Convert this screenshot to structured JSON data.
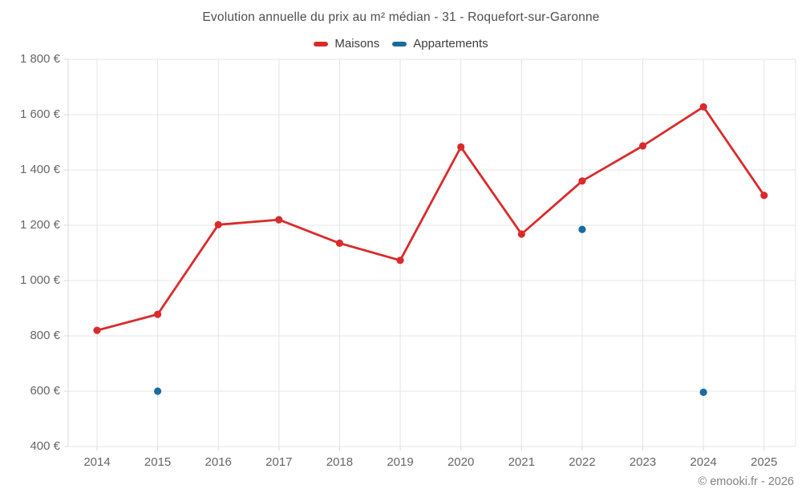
{
  "header": {
    "title": "Evolution annuelle du prix au m² médian - 31 - Roquefort-sur-Garonne"
  },
  "legend": [
    {
      "label": "Maisons",
      "color": "#d92b2b"
    },
    {
      "label": "Appartements",
      "color": "#1a6c9d"
    }
  ],
  "footer": {
    "credit": "© emooki.fr - 2026"
  },
  "chart_data": {
    "type": "line",
    "title": "Evolution annuelle du prix au m² médian - 31 - Roquefort-sur-Garonne",
    "categories": [
      "2014",
      "2015",
      "2016",
      "2017",
      "2018",
      "2019",
      "2020",
      "2021",
      "2022",
      "2023",
      "2024",
      "2025"
    ],
    "series": [
      {
        "name": "Maisons",
        "mode": "line-markers",
        "color": "#d92b2b",
        "values": [
          820,
          878,
          1202,
          1220,
          1135,
          1073,
          1483,
          1168,
          1360,
          1487,
          1628,
          1308
        ]
      },
      {
        "name": "Appartements",
        "mode": "markers",
        "color": "#1a6c9d",
        "values": [
          null,
          600,
          null,
          null,
          null,
          null,
          null,
          null,
          1185,
          null,
          596,
          null
        ]
      }
    ],
    "xlabel": "",
    "ylabel": "",
    "ylim": [
      400,
      1800
    ],
    "y_ticks": [
      400,
      600,
      800,
      1000,
      1200,
      1400,
      1600,
      1800
    ],
    "y_tick_labels": [
      "400 €",
      "600 €",
      "800 €",
      "1 000 €",
      "1 200 €",
      "1 400 €",
      "1 600 €",
      "1 800 €"
    ],
    "currency_suffix": "€",
    "grid": true,
    "grid_color": "#e4e4e4",
    "legend_position": "top"
  }
}
